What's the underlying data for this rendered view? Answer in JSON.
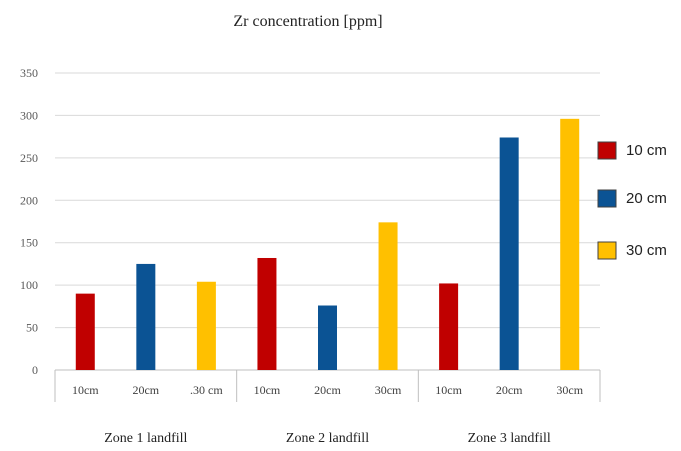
{
  "chart_data": {
    "type": "bar",
    "title": "Zr concentration [ppm]",
    "y_ticks": [
      "0",
      "50",
      "100",
      "150",
      "200",
      "250",
      "300",
      "350"
    ],
    "ylim": [
      0,
      350
    ],
    "grid": true,
    "legend_position": "right",
    "groups": [
      {
        "label": "Zone 1 landfill",
        "bars": [
          {
            "label": "10cm",
            "value": 90,
            "series": "10 cm"
          },
          {
            "label": "20cm",
            "value": 125,
            "series": "20 cm"
          },
          {
            "label": ".30 cm",
            "value": 104,
            "series": "30 cm"
          }
        ]
      },
      {
        "label": "Zone 2 landfill",
        "bars": [
          {
            "label": "10cm",
            "value": 132,
            "series": "10 cm"
          },
          {
            "label": "20cm",
            "value": 76,
            "series": "20 cm"
          },
          {
            "label": "30cm",
            "value": 174,
            "series": "30 cm"
          }
        ]
      },
      {
        "label": "Zone 3 landfill",
        "bars": [
          {
            "label": "10cm",
            "value": 102,
            "series": "10 cm"
          },
          {
            "label": "20cm",
            "value": 274,
            "series": "20 cm"
          },
          {
            "label": "30cm",
            "value": 296,
            "series": "30 cm"
          }
        ]
      }
    ],
    "series": [
      {
        "name": "10 cm",
        "color": "#c00000"
      },
      {
        "name": "20 cm",
        "color": "#0b5394"
      },
      {
        "name": "30 cm",
        "color": "#ffc000"
      }
    ]
  }
}
